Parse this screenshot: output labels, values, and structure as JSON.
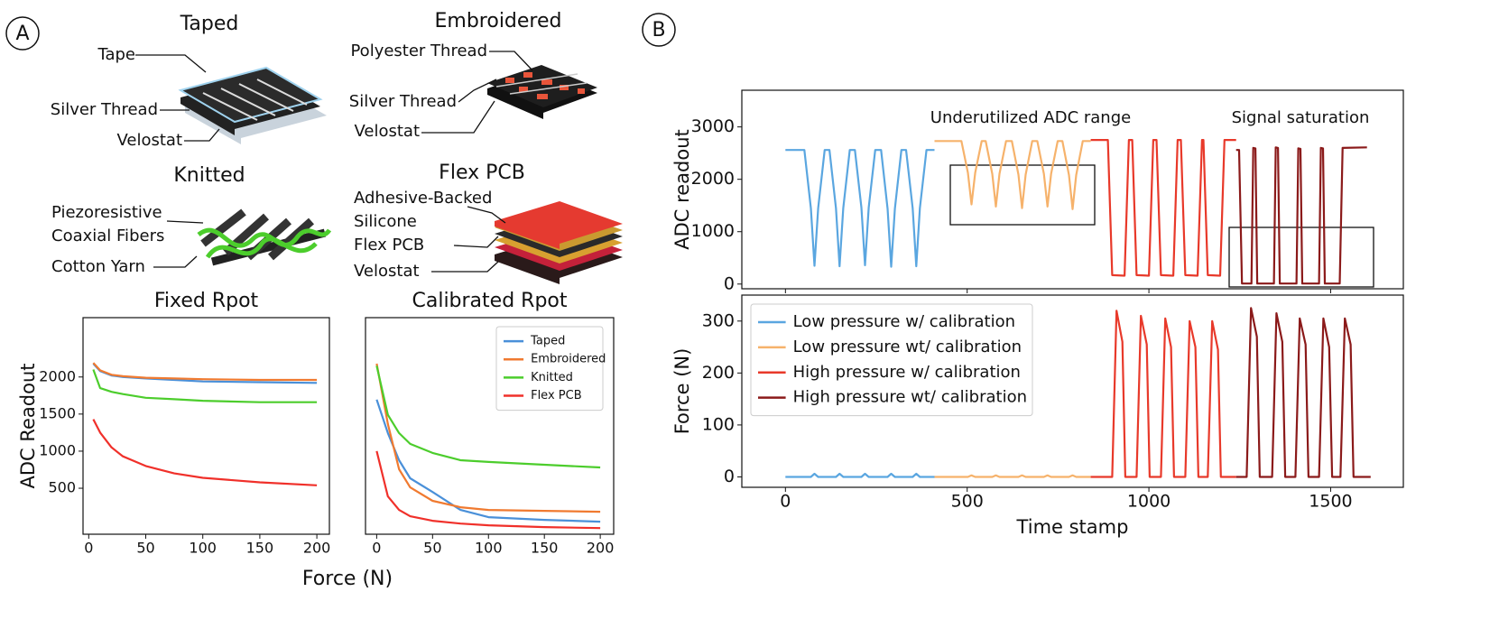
{
  "panels": [
    "A",
    "B"
  ],
  "diagrams": [
    {
      "title": "Taped",
      "labels": [
        [
          "Tape"
        ],
        [
          "Silver Thread"
        ],
        [
          "Velostat"
        ]
      ]
    },
    {
      "title": "Embroidered",
      "labels": [
        [
          "Polyester Thread"
        ],
        [
          "Silver Thread"
        ],
        [
          "Velostat"
        ]
      ]
    },
    {
      "title": "Knitted",
      "labels": [
        [
          "Piezoresistive",
          "Coaxial Fibers"
        ],
        [
          "Cotton Yarn"
        ]
      ]
    },
    {
      "title": "Flex PCB",
      "labels": [
        [
          "Adhesive-Backed",
          "Silicone"
        ],
        [
          "Flex PCB"
        ],
        [
          "Velostat"
        ]
      ]
    }
  ],
  "force_axis_label": "Force (N)",
  "chart_data": [
    {
      "type": "line",
      "title": "Fixed Rpot",
      "ylabel": "ADC Readout",
      "x": [
        4,
        10,
        20,
        30,
        50,
        75,
        100,
        150,
        200
      ],
      "xlim": [
        -5,
        211
      ],
      "ylim": [
        -120,
        2800
      ],
      "xticks": [
        0,
        50,
        100,
        150,
        200
      ],
      "yticks": [
        500,
        1000,
        1500,
        2000
      ],
      "series": [
        {
          "name": "Taped",
          "color": "#4a90d9",
          "values": [
            2180,
            2080,
            2020,
            2000,
            1980,
            1960,
            1940,
            1930,
            1920
          ]
        },
        {
          "name": "Embroidered",
          "color": "#f07a30",
          "values": [
            2190,
            2090,
            2030,
            2010,
            1990,
            1980,
            1970,
            1960,
            1960
          ]
        },
        {
          "name": "Knitted",
          "color": "#4ccd2c",
          "values": [
            2100,
            1850,
            1800,
            1770,
            1720,
            1700,
            1680,
            1660,
            1660
          ]
        },
        {
          "name": "Flex PCB",
          "color": "#f0302a",
          "values": [
            1430,
            1250,
            1050,
            930,
            800,
            700,
            640,
            580,
            540
          ]
        }
      ]
    },
    {
      "type": "line",
      "title": "Calibrated Rpot",
      "x": [
        0,
        10,
        20,
        30,
        50,
        75,
        100,
        150,
        200
      ],
      "xlim": [
        -10,
        212
      ],
      "ylim": [
        -120,
        2800
      ],
      "xticks": [
        0,
        50,
        100,
        150,
        200
      ],
      "yticks": [],
      "legend": "upper right",
      "series": [
        {
          "name": "Taped",
          "color": "#4a90d9",
          "values": [
            1695,
            1244,
            878,
            634,
            450,
            207,
            110,
            73,
            49
          ]
        },
        {
          "name": "Embroidered",
          "color": "#f07a30",
          "values": [
            2180,
            1366,
            756,
            512,
            330,
            244,
            207,
            195,
            183
          ]
        },
        {
          "name": "Knitted",
          "color": "#4ccd2c",
          "values": [
            2150,
            1490,
            1244,
            1098,
            976,
            878,
            854,
            817,
            780
          ]
        },
        {
          "name": "Flex PCB",
          "color": "#f0302a",
          "values": [
            1000,
            390,
            207,
            122,
            61,
            24,
            0,
            -24,
            -37
          ]
        }
      ]
    },
    {
      "type": "line",
      "ylabel": "ADC readout",
      "xlim": [
        -120,
        1700
      ],
      "ylim": [
        -90,
        3700
      ],
      "xticks": [
        0,
        500,
        1000,
        1500
      ],
      "xtick_labels": false,
      "yticks": [
        0,
        1000,
        2000,
        3000
      ],
      "annotations": [
        "Underutilized ADC range",
        "Signal saturation"
      ],
      "series": [
        {
          "name": "Low pressure w/ calibration",
          "color": "#5aa6e0",
          "x": [
            0,
            52,
            70,
            80,
            90,
            108,
            121,
            139,
            149,
            159,
            177,
            191,
            209,
            219,
            229,
            247,
            263,
            281,
            291,
            301,
            319,
            332,
            350,
            360,
            370,
            388,
            410
          ],
          "values": [
            2560,
            2560,
            1450,
            350,
            1450,
            2560,
            2560,
            1450,
            340,
            1450,
            2560,
            2560,
            1460,
            360,
            1460,
            2560,
            2560,
            1440,
            330,
            1440,
            2560,
            2560,
            1450,
            340,
            1450,
            2560,
            2560
          ]
        },
        {
          "name": "Low pressure wt/ calibration",
          "color": "#f6b26b",
          "x": [
            410,
            484,
            502,
            512,
            522,
            540,
            551,
            569,
            579,
            589,
            607,
            623,
            641,
            651,
            661,
            679,
            693,
            711,
            721,
            731,
            749,
            762,
            780,
            790,
            800,
            818,
            840
          ],
          "values": [
            2730,
            2730,
            2125,
            1520,
            2125,
            2730,
            2730,
            2105,
            1480,
            2105,
            2730,
            2730,
            2090,
            1450,
            2090,
            2730,
            2730,
            2105,
            1480,
            2105,
            2730,
            2730,
            2080,
            1430,
            2080,
            2730,
            2730
          ]
        },
        {
          "name": "High pressure w/ calibration",
          "color": "#e8392a",
          "x": [
            840,
            887,
            899,
            933,
            945,
            954,
            966,
            1000,
            1012,
            1021,
            1033,
            1067,
            1079,
            1088,
            1100,
            1134,
            1146,
            1150,
            1162,
            1196,
            1208,
            1240
          ],
          "values": [
            2750,
            2750,
            170,
            160,
            2750,
            2750,
            170,
            160,
            2750,
            2750,
            170,
            160,
            2750,
            2750,
            170,
            160,
            2750,
            2750,
            170,
            160,
            2750,
            2750
          ]
        },
        {
          "name": "High pressure wt/ calibration",
          "color": "#8b1a1a",
          "x": [
            1240,
            1248,
            1256,
            1282,
            1287,
            1293,
            1298,
            1344,
            1349,
            1355,
            1360,
            1406,
            1411,
            1417,
            1422,
            1468,
            1473,
            1479,
            1484,
            1525,
            1533,
            1600
          ],
          "values": [
            2560,
            2560,
            10,
            10,
            2600,
            2590,
            10,
            10,
            2610,
            2600,
            10,
            10,
            2590,
            2580,
            10,
            10,
            2600,
            2590,
            10,
            10,
            2600,
            2610
          ]
        }
      ]
    },
    {
      "type": "line",
      "ylabel": "Force (N)",
      "xlabel": "Time stamp",
      "xlim": [
        -120,
        1700
      ],
      "ylim": [
        -20,
        350
      ],
      "xticks": [
        0,
        500,
        1000,
        1500
      ],
      "yticks": [
        0,
        100,
        200,
        300
      ],
      "legend": "upper left",
      "series": [
        {
          "name": "Low pressure w/ calibration",
          "color": "#5aa6e0",
          "x": [
            0,
            70,
            80,
            90,
            139,
            149,
            159,
            209,
            219,
            229,
            281,
            291,
            301,
            350,
            360,
            370,
            410
          ],
          "values": [
            0,
            0,
            6,
            0,
            0,
            6,
            0,
            0,
            6,
            0,
            0,
            6,
            0,
            0,
            6,
            0,
            0
          ]
        },
        {
          "name": "Low pressure wt/ calibration",
          "color": "#f6b26b",
          "x": [
            410,
            502,
            512,
            522,
            569,
            579,
            589,
            641,
            651,
            661,
            711,
            721,
            731,
            780,
            790,
            800,
            840
          ],
          "values": [
            0,
            0,
            3,
            0,
            0,
            3,
            0,
            0,
            3,
            0,
            0,
            3,
            0,
            0,
            3,
            0,
            0
          ]
        },
        {
          "name": "High pressure w/ calibration",
          "color": "#e8392a",
          "x": [
            840,
            899,
            911,
            927,
            935,
            966,
            978,
            994,
            1002,
            1033,
            1045,
            1061,
            1069,
            1100,
            1112,
            1128,
            1136,
            1162,
            1174,
            1190,
            1198,
            1240
          ],
          "values": [
            0,
            0,
            320,
            260,
            0,
            0,
            310,
            255,
            0,
            0,
            305,
            250,
            0,
            0,
            300,
            250,
            0,
            0,
            300,
            245,
            0,
            0
          ]
        },
        {
          "name": "High pressure wt/ calibration",
          "color": "#8b1a1a",
          "x": [
            1240,
            1269,
            1281,
            1297,
            1305,
            1339,
            1351,
            1367,
            1375,
            1403,
            1415,
            1431,
            1439,
            1468,
            1480,
            1496,
            1504,
            1527,
            1539,
            1555,
            1563,
            1610
          ],
          "values": [
            0,
            0,
            325,
            270,
            0,
            0,
            315,
            260,
            0,
            0,
            305,
            255,
            0,
            0,
            305,
            250,
            0,
            0,
            305,
            255,
            0,
            0
          ]
        }
      ]
    }
  ]
}
